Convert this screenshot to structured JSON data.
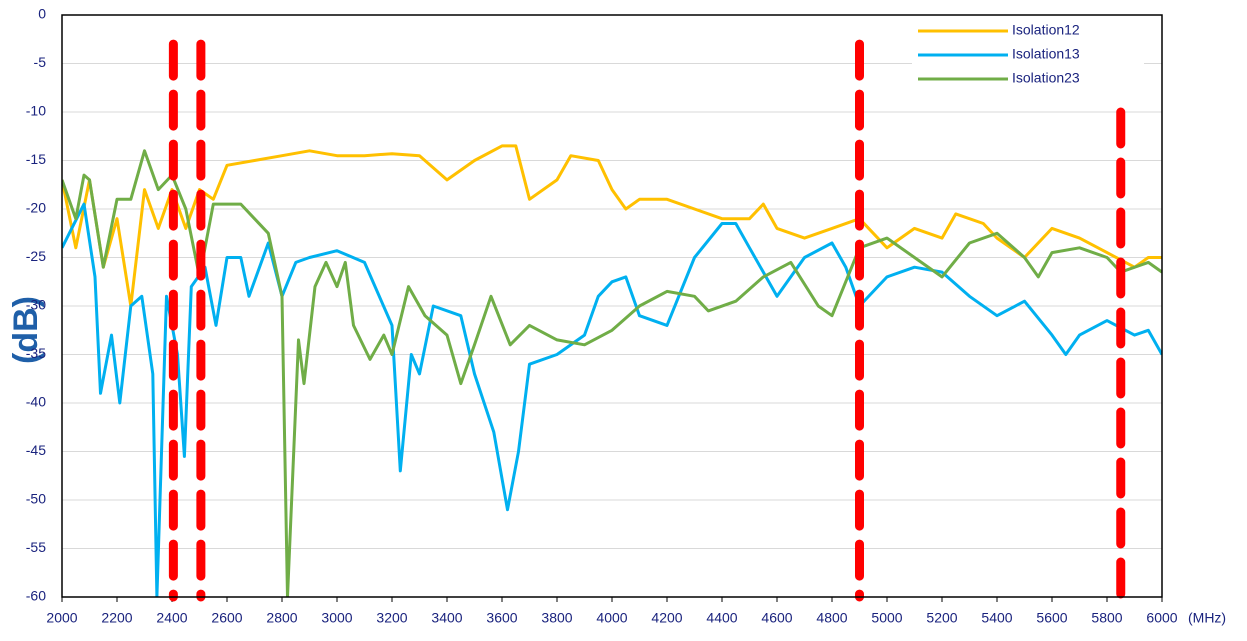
{
  "chart_data": {
    "type": "line",
    "y_label": "(dB)",
    "x_unit": "(MHz)",
    "xlim": [
      2000,
      6000
    ],
    "xticks": [
      2000,
      2200,
      2400,
      2600,
      2800,
      3000,
      3200,
      3400,
      3600,
      3800,
      4000,
      4200,
      4400,
      4600,
      4800,
      5000,
      5200,
      5400,
      5600,
      5800,
      6000
    ],
    "ylim": [
      -60,
      0
    ],
    "yticks": [
      0,
      -5,
      -10,
      -15,
      -20,
      -25,
      -30,
      -35,
      -40,
      -45,
      -50,
      -55,
      -60
    ],
    "grid": true,
    "legend": "top-right",
    "vlines": [
      2405,
      2505,
      4900,
      5850
    ],
    "vline_tops": [
      -3,
      -3,
      -3,
      -10
    ],
    "vline_color": "#ff0000",
    "series": [
      {
        "name": "Isolation12",
        "color": "#ffc000",
        "x": [
          2000,
          2050,
          2100,
          2150,
          2200,
          2250,
          2300,
          2350,
          2400,
          2450,
          2500,
          2550,
          2600,
          2700,
          2800,
          2900,
          3000,
          3100,
          3200,
          3300,
          3400,
          3500,
          3600,
          3650,
          3700,
          3800,
          3850,
          3950,
          4000,
          4050,
          4100,
          4200,
          4300,
          4400,
          4500,
          4550,
          4600,
          4700,
          4800,
          4900,
          5000,
          5100,
          5200,
          5250,
          5350,
          5400,
          5500,
          5600,
          5700,
          5800,
          5900,
          5950,
          6000
        ],
        "values": [
          -17,
          -24,
          -17,
          -26,
          -21,
          -30,
          -18,
          -22,
          -18,
          -22,
          -18,
          -19,
          -15.5,
          -15,
          -14.5,
          -14,
          -14.5,
          -14.5,
          -14.3,
          -14.5,
          -17,
          -15,
          -13.5,
          -13.5,
          -19,
          -17,
          -14.5,
          -15,
          -18,
          -20,
          -19,
          -19,
          -20,
          -21,
          -21,
          -19.5,
          -22,
          -23,
          -22,
          -21,
          -24,
          -22,
          -23,
          -20.5,
          -21.5,
          -23,
          -25,
          -22,
          -23,
          -24.5,
          -26,
          -25,
          -25
        ]
      },
      {
        "name": "Isolation13",
        "color": "#00b0f0",
        "x": [
          2000,
          2080,
          2120,
          2140,
          2180,
          2210,
          2250,
          2290,
          2330,
          2345,
          2380,
          2420,
          2445,
          2470,
          2520,
          2560,
          2600,
          2650,
          2680,
          2750,
          2800,
          2850,
          2900,
          3000,
          3100,
          3200,
          3230,
          3270,
          3300,
          3350,
          3450,
          3500,
          3570,
          3620,
          3660,
          3700,
          3800,
          3900,
          3950,
          4000,
          4050,
          4100,
          4200,
          4300,
          4400,
          4450,
          4500,
          4600,
          4700,
          4800,
          4850,
          4900,
          5000,
          5100,
          5200,
          5300,
          5400,
          5500,
          5600,
          5650,
          5700,
          5800,
          5900,
          5950,
          6000
        ],
        "values": [
          -24,
          -19.5,
          -27,
          -39,
          -33,
          -40,
          -30,
          -29,
          -37,
          -60,
          -29,
          -35,
          -45.5,
          -28,
          -26,
          -32,
          -25,
          -25,
          -29,
          -23.5,
          -29,
          -25.5,
          -25,
          -24.3,
          -25.5,
          -32,
          -47,
          -35,
          -37,
          -30,
          -31,
          -37,
          -43,
          -51,
          -45,
          -36,
          -35,
          -33,
          -29,
          -27.5,
          -27,
          -31,
          -32,
          -25,
          -21.5,
          -21.5,
          -24,
          -29,
          -25,
          -23.5,
          -26,
          -30,
          -27,
          -26,
          -26.5,
          -29,
          -31,
          -29.5,
          -33,
          -35,
          -33,
          -31.5,
          -33,
          -32.5,
          -35
        ]
      },
      {
        "name": "Isolation23",
        "color": "#70ad47",
        "x": [
          2000,
          2050,
          2080,
          2100,
          2150,
          2200,
          2250,
          2300,
          2350,
          2400,
          2450,
          2500,
          2550,
          2650,
          2700,
          2750,
          2800,
          2820,
          2860,
          2880,
          2920,
          2960,
          3000,
          3030,
          3060,
          3120,
          3170,
          3200,
          3260,
          3320,
          3400,
          3450,
          3500,
          3560,
          3630,
          3700,
          3800,
          3900,
          4000,
          4100,
          4200,
          4300,
          4350,
          4450,
          4550,
          4650,
          4750,
          4800,
          4900,
          5000,
          5100,
          5200,
          5300,
          5400,
          5500,
          5550,
          5600,
          5700,
          5800,
          5850,
          5950,
          6000
        ],
        "values": [
          -17,
          -21,
          -16.5,
          -17,
          -26,
          -19,
          -19,
          -14,
          -18,
          -16.5,
          -20,
          -27,
          -19.5,
          -19.5,
          -21,
          -22.5,
          -29,
          -60,
          -33.5,
          -38,
          -28,
          -25.5,
          -28,
          -25.5,
          -32,
          -35.5,
          -33,
          -35,
          -28,
          -31,
          -33,
          -38,
          -34,
          -29,
          -34,
          -32,
          -33.5,
          -34,
          -32.5,
          -30,
          -28.5,
          -29,
          -30.5,
          -29.5,
          -27,
          -25.5,
          -30,
          -31,
          -24,
          -23,
          -25,
          -27,
          -23.5,
          -22.5,
          -25,
          -27,
          -24.5,
          -24,
          -25,
          -26.5,
          -25.5,
          -26.5
        ]
      }
    ]
  }
}
